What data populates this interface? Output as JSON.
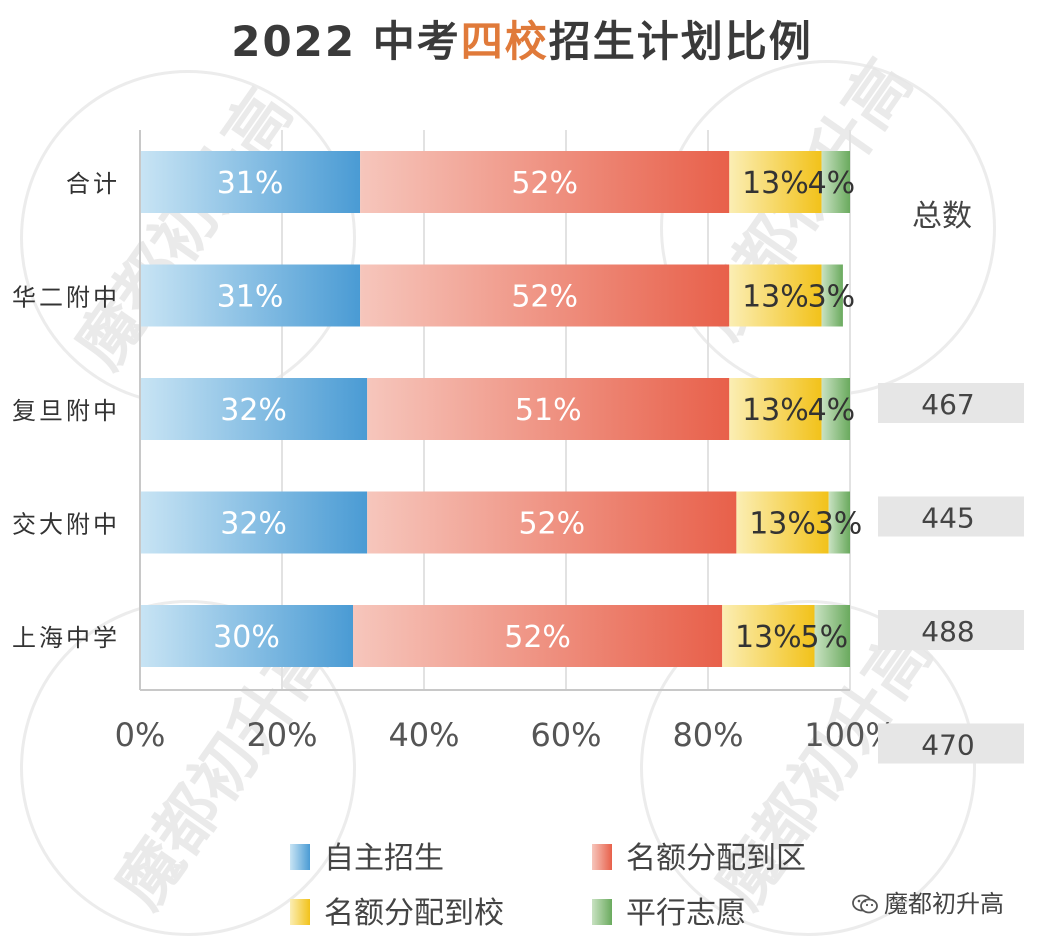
{
  "title": {
    "part1": "2022 中考",
    "highlight": "四校",
    "part2": "招生计划比例",
    "highlight_color": "#e07a3a"
  },
  "watermark": "魔都初升高",
  "brand": {
    "name": "魔都初升高",
    "icon": "wechat-icon"
  },
  "chart_data": {
    "type": "bar",
    "orientation": "horizontal",
    "stacked": true,
    "normalized": true,
    "categories": [
      "合计",
      "华二附中",
      "复旦附中",
      "交大附中",
      "上海中学"
    ],
    "series": [
      {
        "name": "自主招生",
        "values": [
          31,
          31,
          32,
          32,
          30
        ],
        "color": "#4a9bd4",
        "color_light": "#c8e4f4"
      },
      {
        "name": "名额分配到区",
        "values": [
          52,
          52,
          51,
          52,
          52
        ],
        "color": "#e8604a",
        "color_light": "#f6c6bc"
      },
      {
        "name": "名额分配到校",
        "values": [
          13,
          13,
          13,
          13,
          13
        ],
        "color": "#f2c21a",
        "color_light": "#fbeeb4"
      },
      {
        "name": "平行志愿",
        "values": [
          4,
          3,
          4,
          3,
          5
        ],
        "color": "#6aaa5e",
        "color_light": "#c9e2c2"
      }
    ],
    "data_labels": [
      [
        "31%",
        "52%",
        "13%",
        "4%"
      ],
      [
        "31%",
        "52%",
        "13%",
        "3%"
      ],
      [
        "32%",
        "51%",
        "13%",
        "4%"
      ],
      [
        "32%",
        "52%",
        "13%",
        "3%"
      ],
      [
        "30%",
        "52%",
        "13%",
        "5%"
      ]
    ],
    "xlim": [
      0,
      100
    ],
    "xticks": [
      "0%",
      "20%",
      "40%",
      "60%",
      "80%",
      "100%"
    ],
    "grid": true,
    "legend": "bottom",
    "totals": {
      "header": "总数",
      "values": [
        "",
        "467",
        "445",
        "488",
        "470"
      ]
    }
  }
}
